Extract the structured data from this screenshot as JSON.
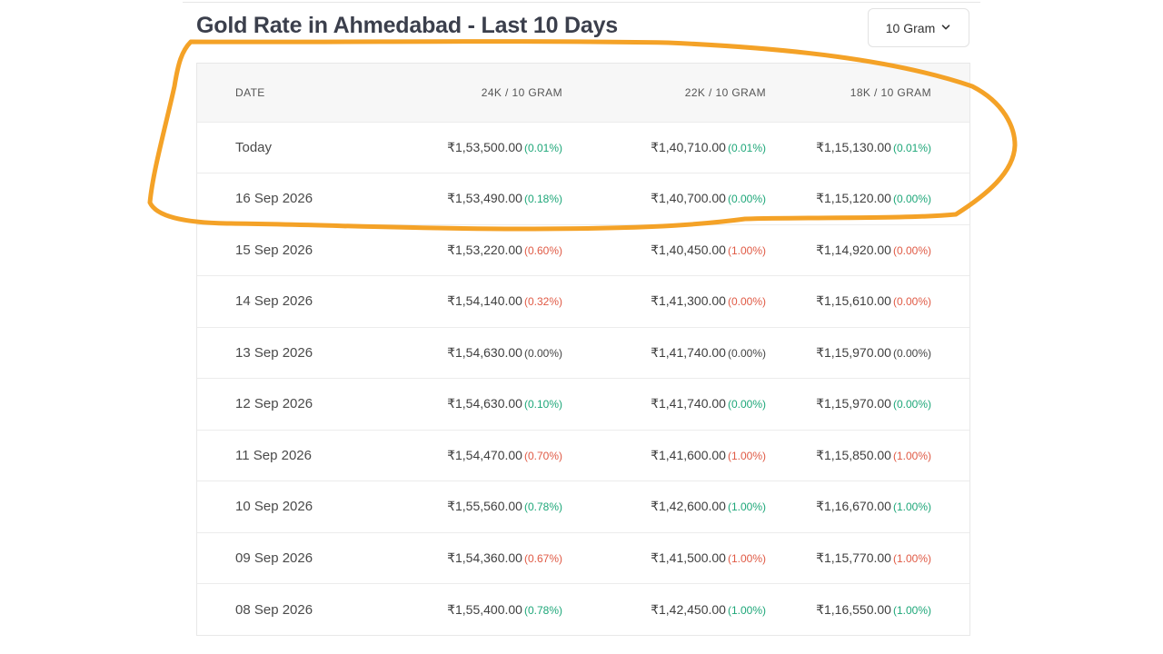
{
  "header": {
    "title": "Gold Rate in Ahmedabad - Last 10 Days",
    "unit_select": {
      "value": "10 Gram",
      "icon": "chevron-down-icon"
    }
  },
  "table": {
    "columns": [
      "DATE",
      "24K / 10 GRAM",
      "22K / 10 GRAM",
      "18K / 10 GRAM"
    ],
    "rows": [
      {
        "date": "Today",
        "k24": "₹1,53,500.00",
        "k24_chg": "(0.01%)",
        "k24_dir": "up",
        "k22": "₹1,40,710.00",
        "k22_chg": "(0.01%)",
        "k22_dir": "up",
        "k18": "₹1,15,130.00",
        "k18_chg": "(0.01%)",
        "k18_dir": "up"
      },
      {
        "date": "16 Sep 2026",
        "k24": "₹1,53,490.00",
        "k24_chg": "(0.18%)",
        "k24_dir": "up",
        "k22": "₹1,40,700.00",
        "k22_chg": "(0.00%)",
        "k22_dir": "up",
        "k18": "₹1,15,120.00",
        "k18_chg": "(0.00%)",
        "k18_dir": "up"
      },
      {
        "date": "15 Sep 2026",
        "k24": "₹1,53,220.00",
        "k24_chg": "(0.60%)",
        "k24_dir": "down",
        "k22": "₹1,40,450.00",
        "k22_chg": "(1.00%)",
        "k22_dir": "down",
        "k18": "₹1,14,920.00",
        "k18_chg": "(0.00%)",
        "k18_dir": "down"
      },
      {
        "date": "14 Sep 2026",
        "k24": "₹1,54,140.00",
        "k24_chg": "(0.32%)",
        "k24_dir": "down",
        "k22": "₹1,41,300.00",
        "k22_chg": "(0.00%)",
        "k22_dir": "down",
        "k18": "₹1,15,610.00",
        "k18_chg": "(0.00%)",
        "k18_dir": "down"
      },
      {
        "date": "13 Sep 2026",
        "k24": "₹1,54,630.00",
        "k24_chg": "(0.00%)",
        "k24_dir": "flat",
        "k22": "₹1,41,740.00",
        "k22_chg": "(0.00%)",
        "k22_dir": "flat",
        "k18": "₹1,15,970.00",
        "k18_chg": "(0.00%)",
        "k18_dir": "flat"
      },
      {
        "date": "12 Sep 2026",
        "k24": "₹1,54,630.00",
        "k24_chg": "(0.10%)",
        "k24_dir": "up",
        "k22": "₹1,41,740.00",
        "k22_chg": "(0.00%)",
        "k22_dir": "up",
        "k18": "₹1,15,970.00",
        "k18_chg": "(0.00%)",
        "k18_dir": "up"
      },
      {
        "date": "11 Sep 2026",
        "k24": "₹1,54,470.00",
        "k24_chg": "(0.70%)",
        "k24_dir": "down",
        "k22": "₹1,41,600.00",
        "k22_chg": "(1.00%)",
        "k22_dir": "down",
        "k18": "₹1,15,850.00",
        "k18_chg": "(1.00%)",
        "k18_dir": "down"
      },
      {
        "date": "10 Sep 2026",
        "k24": "₹1,55,560.00",
        "k24_chg": "(0.78%)",
        "k24_dir": "up",
        "k22": "₹1,42,600.00",
        "k22_chg": "(1.00%)",
        "k22_dir": "up",
        "k18": "₹1,16,670.00",
        "k18_chg": "(1.00%)",
        "k18_dir": "up"
      },
      {
        "date": "09 Sep 2026",
        "k24": "₹1,54,360.00",
        "k24_chg": "(0.67%)",
        "k24_dir": "down",
        "k22": "₹1,41,500.00",
        "k22_chg": "(1.00%)",
        "k22_dir": "down",
        "k18": "₹1,15,770.00",
        "k18_chg": "(1.00%)",
        "k18_dir": "down"
      },
      {
        "date": "08 Sep 2026",
        "k24": "₹1,55,400.00",
        "k24_chg": "(0.78%)",
        "k24_dir": "up",
        "k22": "₹1,42,450.00",
        "k22_chg": "(1.00%)",
        "k22_dir": "up",
        "k18": "₹1,16,550.00",
        "k18_chg": "(1.00%)",
        "k18_dir": "up"
      }
    ]
  },
  "colors": {
    "up": "#1ea779",
    "down": "#e05a45",
    "highlight_stroke": "#f4a227",
    "title": "#3b3f4c"
  }
}
